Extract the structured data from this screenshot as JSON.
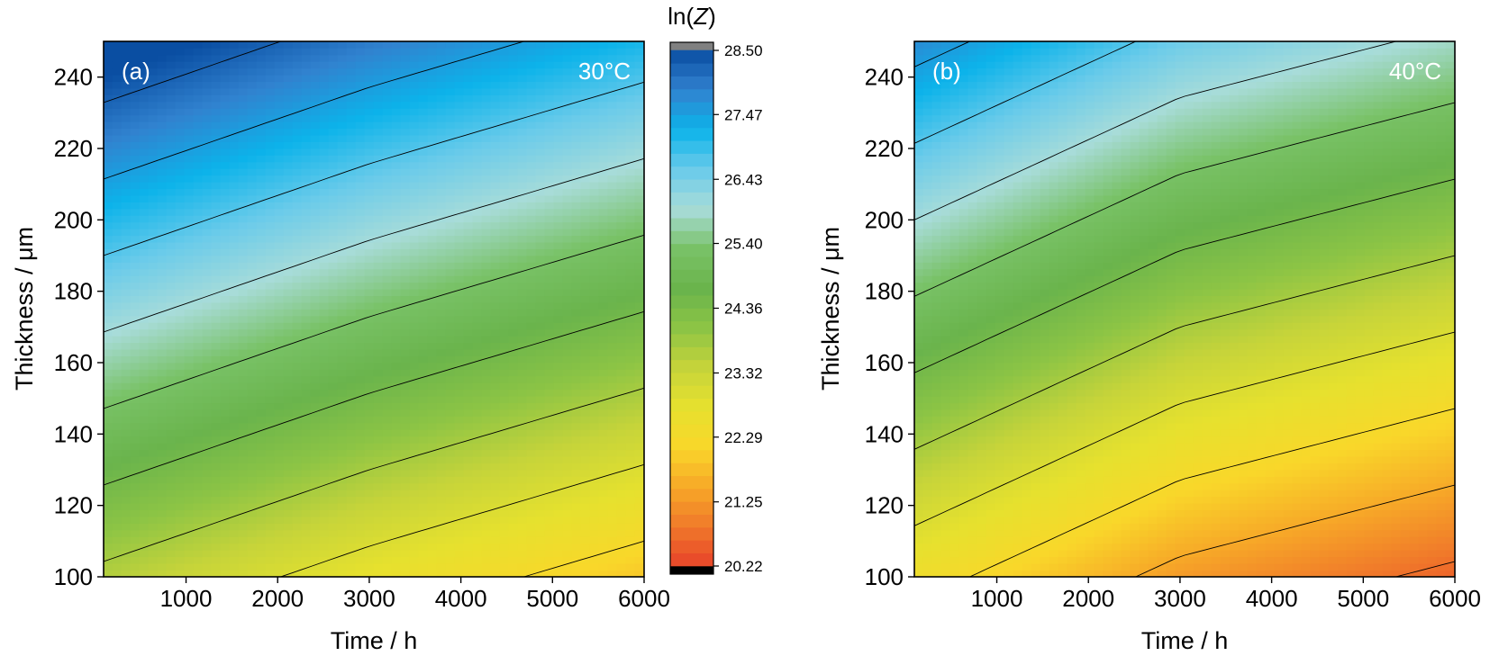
{
  "colors": {
    "palette": [
      "#e8432a",
      "#f0792a",
      "#f7a928",
      "#f9d72a",
      "#e6e12e",
      "#c6d43a",
      "#8cc445",
      "#6ab44c",
      "#79c267",
      "#a8dcd9",
      "#6acbea",
      "#0cb3ea",
      "#3182cf",
      "#0a4ea2"
    ],
    "over": "#808080",
    "under": "#000000",
    "contour_line": "#000000"
  },
  "chart_data": [
    {
      "type": "heatmap",
      "panel_label": "(a)",
      "temperature_label": "30°C",
      "xlabel": "Time / h",
      "ylabel": "Thickness / μm",
      "xlim": [
        100,
        6000
      ],
      "ylim": [
        100,
        250
      ],
      "xticks": [
        1000,
        2000,
        3000,
        4000,
        5000,
        6000
      ],
      "yticks": [
        100,
        120,
        140,
        160,
        180,
        200,
        220,
        240
      ],
      "value_range": [
        20.22,
        28.5
      ],
      "field": {
        "description_units": "ln(Z)",
        "base_at_y100": [
          23.6,
          22.7,
          21.9
        ],
        "x_for_base": [
          100,
          3000,
          6000
        ],
        "gradient_per_um": 0.035
      }
    },
    {
      "type": "heatmap",
      "panel_label": "(b)",
      "temperature_label": "40°C",
      "xlabel": "Time / h",
      "ylabel": "Thickness / μm",
      "xlim": [
        100,
        6000
      ],
      "ylim": [
        100,
        250
      ],
      "xticks": [
        1000,
        2000,
        3000,
        4000,
        5000,
        6000
      ],
      "yticks": [
        100,
        120,
        140,
        160,
        180,
        200,
        220,
        240
      ],
      "value_range": [
        20.22,
        28.5
      ],
      "field": {
        "description_units": "ln(Z)",
        "base_at_y100": [
          22.5,
          21.3,
          20.6
        ],
        "x_for_base": [
          100,
          3000,
          6000
        ],
        "gradient_per_um": 0.035
      }
    }
  ],
  "colorbar": {
    "title_prefix": "ln(",
    "title_var": "Z",
    "title_suffix": ")",
    "min": 20.22,
    "max": 28.5,
    "ticks": [
      "28.50",
      "27.47",
      "26.43",
      "25.40",
      "24.36",
      "23.32",
      "22.29",
      "21.25",
      "20.22"
    ],
    "levels": 40
  }
}
